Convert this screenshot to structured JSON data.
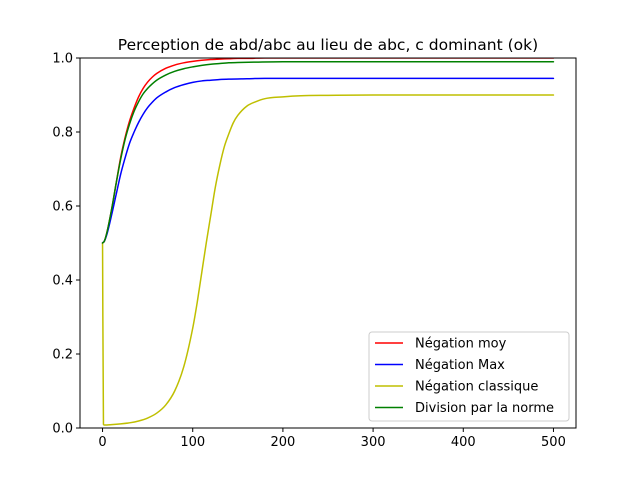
{
  "chart_data": {
    "type": "line",
    "title": "Perception de abd/abc au lieu de abc, c dominant (ok)",
    "xlabel": "",
    "ylabel": "",
    "xlim": [
      -25,
      525
    ],
    "ylim": [
      0,
      1.0
    ],
    "x_ticks": [
      0,
      100,
      200,
      300,
      400,
      500
    ],
    "x_tick_labels": [
      "0",
      "100",
      "200",
      "300",
      "400",
      "500"
    ],
    "y_ticks": [
      0,
      0.2,
      0.4,
      0.6,
      0.8,
      1.0
    ],
    "y_tick_labels": [
      "0.0",
      "0.2",
      "0.4",
      "0.6",
      "0.8",
      "1.0"
    ],
    "grid": false,
    "legend_position": "lower-right",
    "series": [
      {
        "name": "Négation moy",
        "color": "#ff0000",
        "x": [
          0,
          2,
          5,
          10,
          15,
          20,
          25,
          30,
          35,
          40,
          45,
          50,
          55,
          60,
          70,
          80,
          90,
          100,
          110,
          120,
          130,
          140,
          150,
          160,
          180,
          200,
          250,
          300,
          400,
          500
        ],
        "y": [
          0.5,
          0.505,
          0.53,
          0.59,
          0.66,
          0.73,
          0.785,
          0.83,
          0.865,
          0.895,
          0.918,
          0.935,
          0.948,
          0.958,
          0.972,
          0.981,
          0.987,
          0.991,
          0.994,
          0.996,
          0.997,
          0.998,
          0.999,
          0.999,
          1.0,
          1.0,
          1.0,
          1.0,
          1.0,
          1.0
        ]
      },
      {
        "name": "Négation Max",
        "color": "#0000ff",
        "x": [
          0,
          2,
          5,
          10,
          15,
          20,
          25,
          30,
          35,
          40,
          45,
          50,
          55,
          60,
          70,
          80,
          90,
          100,
          110,
          120,
          130,
          140,
          160,
          180,
          200,
          250,
          300,
          400,
          500
        ],
        "y": [
          0.5,
          0.505,
          0.525,
          0.575,
          0.63,
          0.685,
          0.73,
          0.77,
          0.8,
          0.826,
          0.848,
          0.866,
          0.88,
          0.892,
          0.908,
          0.92,
          0.928,
          0.934,
          0.938,
          0.94,
          0.942,
          0.943,
          0.944,
          0.945,
          0.945,
          0.945,
          0.945,
          0.945,
          0.945
        ]
      },
      {
        "name": "Négation classique",
        "color": "#bfbf00",
        "x": [
          0,
          1,
          2,
          10,
          20,
          30,
          40,
          50,
          60,
          70,
          80,
          90,
          100,
          105,
          110,
          115,
          120,
          125,
          130,
          135,
          140,
          145,
          150,
          160,
          170,
          180,
          200,
          220,
          250,
          300,
          400,
          500
        ],
        "y": [
          0.5,
          0.01,
          0.008,
          0.009,
          0.011,
          0.014,
          0.019,
          0.027,
          0.04,
          0.062,
          0.1,
          0.165,
          0.27,
          0.34,
          0.42,
          0.5,
          0.575,
          0.65,
          0.71,
          0.76,
          0.795,
          0.825,
          0.845,
          0.87,
          0.882,
          0.89,
          0.895,
          0.898,
          0.899,
          0.9,
          0.9,
          0.9
        ]
      },
      {
        "name": "Division par la norme",
        "color": "#008000",
        "x": [
          0,
          2,
          5,
          10,
          15,
          20,
          25,
          30,
          35,
          40,
          45,
          50,
          55,
          60,
          70,
          80,
          90,
          100,
          110,
          120,
          130,
          140,
          150,
          170,
          200,
          250,
          300,
          400,
          500
        ],
        "y": [
          0.5,
          0.505,
          0.53,
          0.59,
          0.66,
          0.725,
          0.78,
          0.822,
          0.856,
          0.882,
          0.903,
          0.918,
          0.93,
          0.94,
          0.954,
          0.964,
          0.971,
          0.976,
          0.98,
          0.983,
          0.985,
          0.987,
          0.988,
          0.989,
          0.99,
          0.99,
          0.99,
          0.99,
          0.99
        ]
      }
    ]
  }
}
